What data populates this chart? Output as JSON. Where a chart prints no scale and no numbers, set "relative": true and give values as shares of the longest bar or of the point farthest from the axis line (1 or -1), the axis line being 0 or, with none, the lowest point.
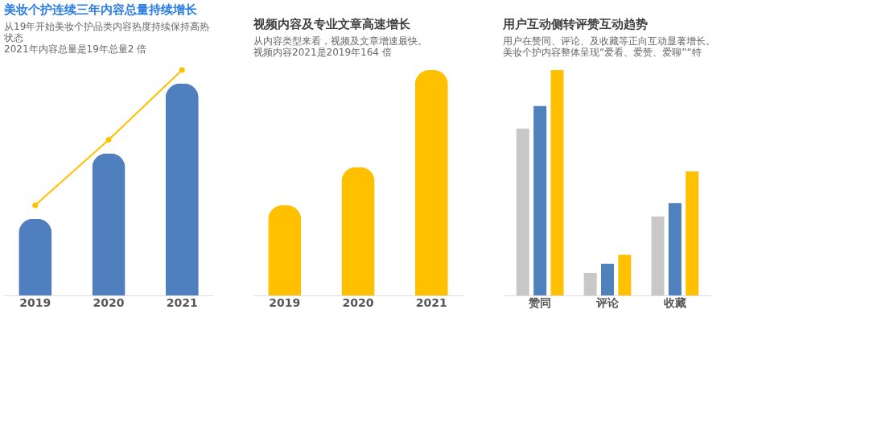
{
  "chart_data": [
    {
      "type": "bar",
      "title": "美妆个护连续三年内容总量持续增长",
      "subtitle": "从19年开始美妆个护品类内容热度持续保持高热状态",
      "annotations": [
        "2021年内容总量是19年总量2 倍"
      ],
      "relative": true,
      "categories": [
        "2019",
        "2020",
        "2021"
      ],
      "series": [
        {
          "color": "#4f7fbf",
          "values": [
            0.34,
            0.63,
            0.94
          ]
        },
        {
          "type": "line",
          "color": "#ffc000",
          "values": [
            0.4,
            0.69,
            1
          ],
          "marker": "circle"
        }
      ]
    },
    {
      "type": "bar",
      "title": "视频内容及专业文章高速增长",
      "subtitle": "从内容类型来看，视频及文章增速最快。",
      "annotations": [
        "视频内容2021是2019年164 倍"
      ],
      "relative": true,
      "categories": [
        "2019",
        "2020",
        "2021"
      ],
      "series": [
        {
          "color": "#ffc000",
          "values": [
            0.4,
            0.57,
            1
          ]
        }
      ]
    },
    {
      "type": "bar",
      "title": "用户互动侧转评赞互动趋势",
      "subtitle": "用户在赞同、评论、及收藏等正向互动显著增长。",
      "annotations": [
        "美妆个护内容整体呈现“爱看、爱赞、爱聊”“特"
      ],
      "relative": true,
      "categories": [
        "赞同",
        "评论",
        "收藏"
      ],
      "series": [
        {
          "color": "#c8c8c8",
          "values": [
            0.74,
            0.1,
            0.35
          ]
        },
        {
          "color": "#4f81bd",
          "values": [
            0.84,
            0.14,
            0.41
          ]
        },
        {
          "color": "#ffc000",
          "values": [
            1,
            0.18,
            0.55
          ]
        }
      ]
    }
  ]
}
